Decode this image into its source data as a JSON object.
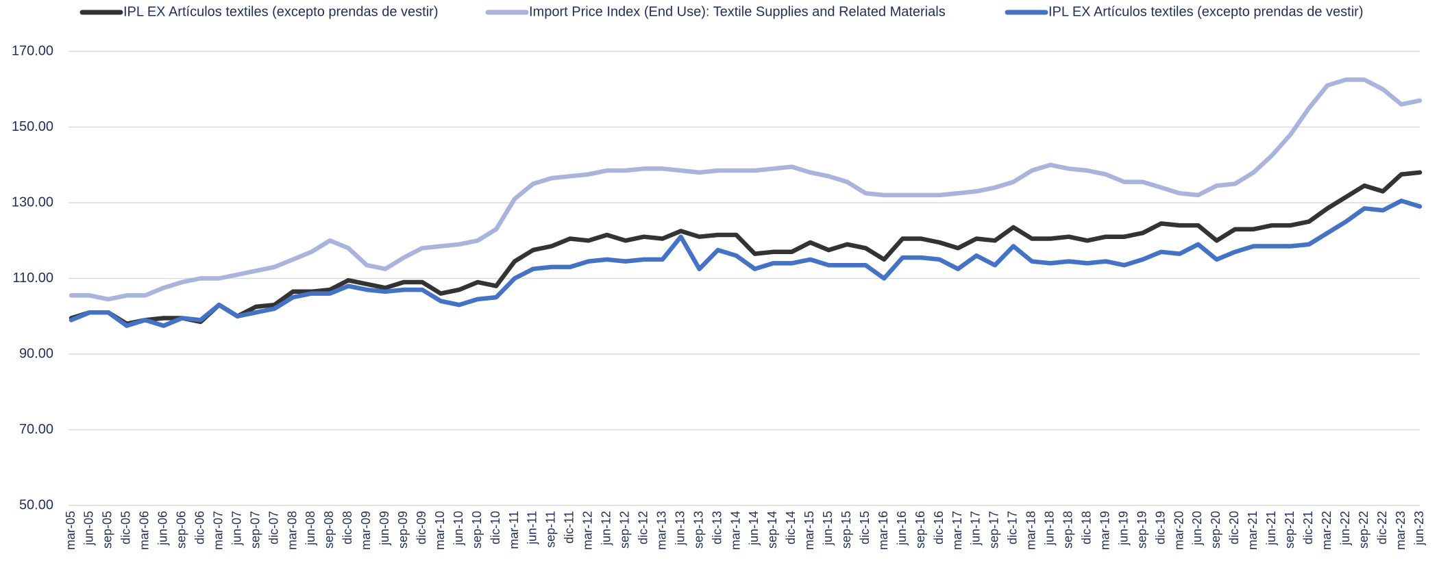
{
  "chart_data": {
    "type": "line",
    "categories": [
      "mar-05",
      "jun-05",
      "sep-05",
      "dic-05",
      "mar-06",
      "jun-06",
      "sep-06",
      "dic-06",
      "mar-07",
      "jun-07",
      "sep-07",
      "dic-07",
      "mar-08",
      "jun-08",
      "sep-08",
      "dic-08",
      "mar-09",
      "jun-09",
      "sep-09",
      "dic-09",
      "mar-10",
      "jun-10",
      "sep-10",
      "dic-10",
      "mar-11",
      "jun-11",
      "sep-11",
      "dic-11",
      "mar-12",
      "jun-12",
      "sep-12",
      "dic-12",
      "mar-13",
      "jun-13",
      "sep-13",
      "dic-13",
      "mar-14",
      "jun-14",
      "sep-14",
      "dic-14",
      "mar-15",
      "jun-15",
      "sep-15",
      "dic-15",
      "mar-16",
      "jun-16",
      "sep-16",
      "dic-16",
      "mar-17",
      "jun-17",
      "sep-17",
      "dic-17",
      "mar-18",
      "jun-18",
      "sep-18",
      "dic-18",
      "mar-19",
      "jun-19",
      "sep-19",
      "dic-19",
      "mar-20",
      "jun-20",
      "sep-20",
      "dic-20",
      "mar-21",
      "jun-21",
      "sep-21",
      "dic-21",
      "mar-22",
      "jun-22",
      "sep-22",
      "dic-22",
      "mar-23",
      "jun-23"
    ],
    "series": [
      {
        "name": "IPL EX Artículos textiles (excepto prendas de vestir)",
        "color": "#333333",
        "values": [
          99.5,
          101,
          101,
          98,
          99,
          99.5,
          99.5,
          98.5,
          103,
          100,
          102.5,
          103,
          106.5,
          106.5,
          107,
          109.5,
          108.5,
          107.5,
          109,
          109,
          106,
          107,
          109,
          108,
          114.5,
          117.5,
          118.5,
          120.5,
          120,
          121.5,
          120,
          121,
          120.5,
          122.5,
          121,
          121.5,
          121.5,
          116.5,
          117,
          117,
          119.5,
          117.5,
          119,
          118,
          115,
          120.5,
          120.5,
          119.5,
          118,
          120.5,
          120,
          123.5,
          120.5,
          120.5,
          121,
          120,
          121,
          121,
          122,
          124.5,
          124,
          124,
          120,
          123,
          123,
          124,
          124,
          125,
          128.5,
          131.5,
          134.5,
          133,
          137.5,
          138
        ]
      },
      {
        "name": "Import Price Index (End Use): Textile Supplies and Related Materials",
        "color": "#a9b4dc",
        "values": [
          105.5,
          105.5,
          104.5,
          105.5,
          105.5,
          107.5,
          109,
          110,
          110,
          111,
          112,
          113,
          115,
          117,
          120,
          118,
          113.5,
          112.5,
          115.5,
          118,
          118.5,
          119,
          120,
          123,
          131,
          135,
          136.5,
          137,
          137.5,
          138.5,
          138.5,
          139,
          139,
          138.5,
          138,
          138.5,
          138.5,
          138.5,
          139,
          139.5,
          138,
          137,
          135.5,
          132.5,
          132,
          132,
          132,
          132,
          132.5,
          133,
          134,
          135.5,
          138.5,
          140,
          139,
          138.5,
          137.5,
          135.5,
          135.5,
          134,
          132.5,
          132,
          134.5,
          135,
          138,
          142.5,
          148,
          155,
          161,
          162.5,
          162.5,
          160,
          156,
          157
        ]
      },
      {
        "name": "IPL EX Artículos textiles (excepto prendas de vestir)",
        "color": "#4472c4",
        "values": [
          99,
          101,
          101,
          97.5,
          99,
          97.5,
          99.5,
          99,
          103,
          100,
          101,
          102,
          105,
          106,
          106,
          108,
          107,
          106.5,
          107,
          107,
          104,
          103,
          104.5,
          105,
          110,
          112.5,
          113,
          113,
          114.5,
          115,
          114.5,
          115,
          115,
          121,
          112.5,
          117.5,
          116,
          112.5,
          114,
          114,
          115,
          113.5,
          113.5,
          113.5,
          110,
          115.5,
          115.5,
          115,
          112.5,
          116,
          113.5,
          118.5,
          114.5,
          114,
          114.5,
          114,
          114.5,
          113.5,
          115,
          117,
          116.5,
          119,
          115,
          117,
          118.5,
          118.5,
          118.5,
          119,
          122,
          125,
          128.5,
          128,
          130.5,
          129
        ]
      }
    ],
    "ylim": [
      50,
      170
    ],
    "yticks": [
      {
        "value": 50,
        "label": "50.00"
      },
      {
        "value": 70,
        "label": "70.00"
      },
      {
        "value": 90,
        "label": "90.00"
      },
      {
        "value": 110,
        "label": "110.00"
      },
      {
        "value": 130,
        "label": "130.00"
      },
      {
        "value": 150,
        "label": "150.00"
      },
      {
        "value": 170,
        "label": "170.00"
      }
    ],
    "grid": true
  }
}
